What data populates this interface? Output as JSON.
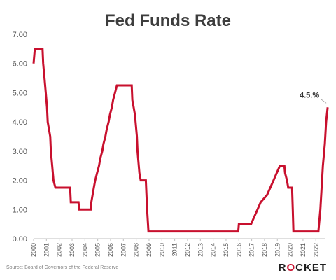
{
  "chart_data": {
    "type": "line",
    "title": "Fed Funds Rate",
    "ylim": [
      0,
      7
    ],
    "yticks": [
      "0.00",
      "1.00",
      "2.00",
      "3.00",
      "4.00",
      "5.00",
      "6.00",
      "7.00"
    ],
    "xlim": [
      2000,
      2022.75
    ],
    "xticks": [
      "2000",
      "2001",
      "2002",
      "2003",
      "2004",
      "2005",
      "2006",
      "2007",
      "2008",
      "2009",
      "2010",
      "2011",
      "2012",
      "2013",
      "2014",
      "2015",
      "2016",
      "2017",
      "2018",
      "2019",
      "2020",
      "2021",
      "2022"
    ],
    "grid": false,
    "series": [
      {
        "color": "#c8102e",
        "points": [
          [
            2000.0,
            6.0
          ],
          [
            2000.1,
            6.5
          ],
          [
            2000.7,
            6.5
          ],
          [
            2000.75,
            6.0
          ],
          [
            2000.85,
            5.5
          ],
          [
            2000.95,
            5.0
          ],
          [
            2001.05,
            4.5
          ],
          [
            2001.1,
            4.0
          ],
          [
            2001.2,
            3.75
          ],
          [
            2001.3,
            3.5
          ],
          [
            2001.35,
            3.0
          ],
          [
            2001.45,
            2.5
          ],
          [
            2001.55,
            2.0
          ],
          [
            2001.7,
            1.75
          ],
          [
            2002.85,
            1.75
          ],
          [
            2002.9,
            1.25
          ],
          [
            2003.5,
            1.25
          ],
          [
            2003.55,
            1.0
          ],
          [
            2004.45,
            1.0
          ],
          [
            2004.5,
            1.25
          ],
          [
            2004.6,
            1.5
          ],
          [
            2004.7,
            1.75
          ],
          [
            2004.8,
            2.0
          ],
          [
            2004.95,
            2.25
          ],
          [
            2005.1,
            2.5
          ],
          [
            2005.2,
            2.75
          ],
          [
            2005.35,
            3.0
          ],
          [
            2005.45,
            3.25
          ],
          [
            2005.6,
            3.5
          ],
          [
            2005.7,
            3.75
          ],
          [
            2005.85,
            4.0
          ],
          [
            2005.95,
            4.25
          ],
          [
            2006.1,
            4.5
          ],
          [
            2006.2,
            4.75
          ],
          [
            2006.35,
            5.0
          ],
          [
            2006.5,
            5.25
          ],
          [
            2007.65,
            5.25
          ],
          [
            2007.7,
            4.75
          ],
          [
            2007.8,
            4.5
          ],
          [
            2007.9,
            4.25
          ],
          [
            2008.05,
            3.5
          ],
          [
            2008.1,
            3.0
          ],
          [
            2008.25,
            2.25
          ],
          [
            2008.35,
            2.0
          ],
          [
            2008.75,
            2.0
          ],
          [
            2008.8,
            1.5
          ],
          [
            2008.85,
            1.0
          ],
          [
            2008.95,
            0.25
          ],
          [
            2015.95,
            0.25
          ],
          [
            2016.0,
            0.5
          ],
          [
            2016.95,
            0.5
          ],
          [
            2017.2,
            0.75
          ],
          [
            2017.45,
            1.0
          ],
          [
            2017.7,
            1.25
          ],
          [
            2018.2,
            1.5
          ],
          [
            2018.45,
            1.75
          ],
          [
            2018.7,
            2.0
          ],
          [
            2018.95,
            2.25
          ],
          [
            2019.2,
            2.5
          ],
          [
            2019.55,
            2.5
          ],
          [
            2019.6,
            2.25
          ],
          [
            2019.75,
            2.0
          ],
          [
            2019.85,
            1.75
          ],
          [
            2020.15,
            1.75
          ],
          [
            2020.2,
            1.0
          ],
          [
            2020.25,
            0.25
          ],
          [
            2022.2,
            0.25
          ],
          [
            2022.25,
            0.5
          ],
          [
            2022.35,
            1.0
          ],
          [
            2022.45,
            1.75
          ],
          [
            2022.55,
            2.5
          ],
          [
            2022.7,
            3.25
          ],
          [
            2022.8,
            4.0
          ],
          [
            2022.92,
            4.5
          ]
        ]
      }
    ],
    "annotation": {
      "text": "4.5.%",
      "x": 2022.92,
      "y": 4.5
    }
  },
  "footer": {
    "source": "Source: Board of Governors of the Federal Reserve",
    "logo_left": "R",
    "logo_o": "O",
    "logo_right": "CKET"
  }
}
